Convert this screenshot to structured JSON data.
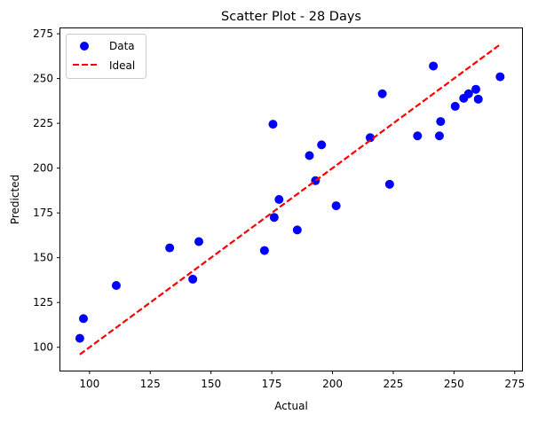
{
  "chart_data": {
    "type": "scatter",
    "title": "Scatter Plot - 28 Days",
    "xlabel": "Actual",
    "ylabel": "Predicted",
    "xlim": [
      88,
      278
    ],
    "ylim": [
      87,
      278
    ],
    "xticks": [
      100,
      125,
      150,
      175,
      200,
      225,
      250,
      275
    ],
    "yticks": [
      100,
      125,
      150,
      175,
      200,
      225,
      250,
      275
    ],
    "grid": false,
    "legend_position": "top-left",
    "series": [
      {
        "name": "Data",
        "kind": "points",
        "color": "#0000ff",
        "points": [
          {
            "x": 96,
            "y": 105
          },
          {
            "x": 97.5,
            "y": 116
          },
          {
            "x": 111,
            "y": 134.5
          },
          {
            "x": 133,
            "y": 155.5
          },
          {
            "x": 142.5,
            "y": 138
          },
          {
            "x": 145,
            "y": 159
          },
          {
            "x": 172,
            "y": 154
          },
          {
            "x": 175.5,
            "y": 224.5
          },
          {
            "x": 176,
            "y": 172.5
          },
          {
            "x": 178,
            "y": 182.5
          },
          {
            "x": 185.5,
            "y": 165.5
          },
          {
            "x": 190.5,
            "y": 207
          },
          {
            "x": 193,
            "y": 193
          },
          {
            "x": 195.5,
            "y": 213
          },
          {
            "x": 201.5,
            "y": 179
          },
          {
            "x": 215.5,
            "y": 217
          },
          {
            "x": 220.5,
            "y": 241.5
          },
          {
            "x": 223.5,
            "y": 191
          },
          {
            "x": 235,
            "y": 218
          },
          {
            "x": 241.5,
            "y": 257
          },
          {
            "x": 244,
            "y": 218
          },
          {
            "x": 244.5,
            "y": 226
          },
          {
            "x": 250.5,
            "y": 234.5
          },
          {
            "x": 254,
            "y": 239
          },
          {
            "x": 256,
            "y": 241.5
          },
          {
            "x": 259,
            "y": 244
          },
          {
            "x": 260,
            "y": 238.5
          },
          {
            "x": 269,
            "y": 251
          }
        ]
      },
      {
        "name": "Ideal",
        "kind": "line",
        "color": "#ff0000",
        "style": "dashed",
        "points": [
          {
            "x": 96,
            "y": 96
          },
          {
            "x": 269,
            "y": 269
          }
        ]
      }
    ]
  }
}
